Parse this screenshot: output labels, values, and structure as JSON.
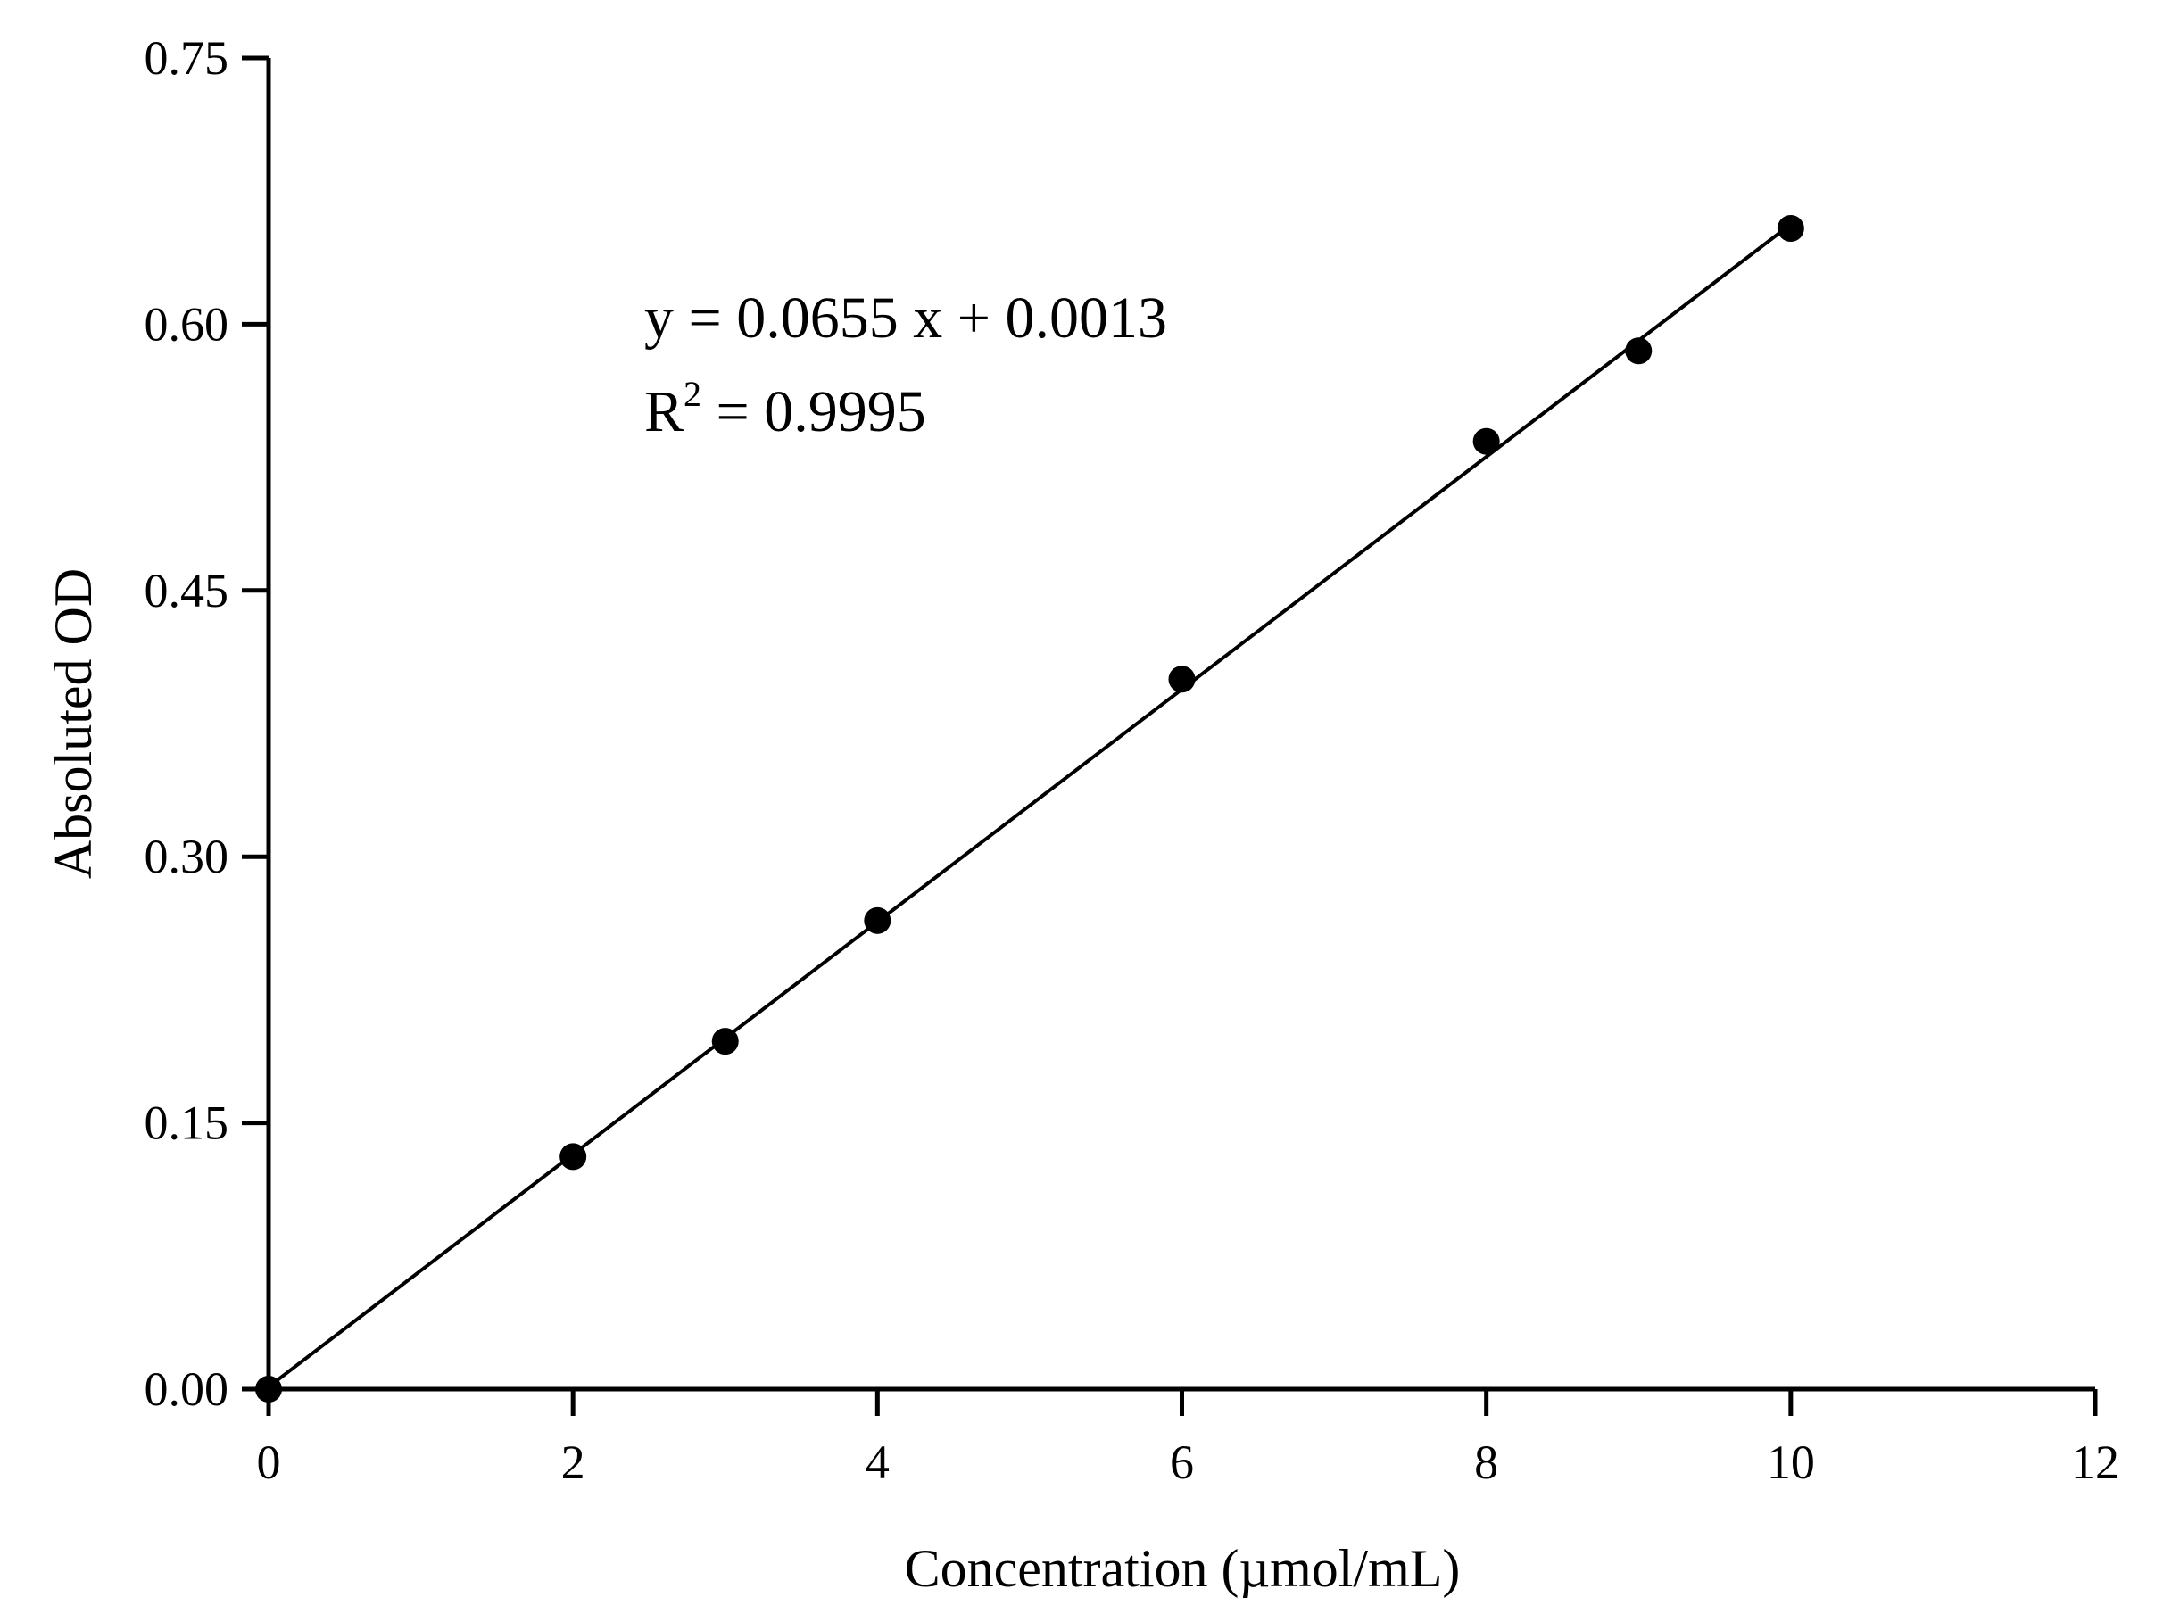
{
  "chart_data": {
    "type": "scatter",
    "title": "",
    "xlabel": "Concentration (µmol/mL)",
    "ylabel": "Absoluted OD",
    "xlim": [
      0,
      12
    ],
    "ylim": [
      0,
      0.75
    ],
    "xticks": [
      0,
      2,
      4,
      6,
      8,
      10,
      12
    ],
    "xtick_labels": [
      "0",
      "2",
      "4",
      "6",
      "8",
      "10",
      "12"
    ],
    "yticks": [
      0,
      0.15,
      0.3,
      0.45,
      0.6,
      0.75
    ],
    "ytick_labels": [
      "0.00",
      "0.15",
      "0.30",
      "0.45",
      "0.60",
      "0.75"
    ],
    "grid": false,
    "series": [
      {
        "x": [
          0,
          2,
          3,
          4,
          6,
          8,
          9,
          10
        ],
        "y": [
          0.0,
          0.131,
          0.196,
          0.264,
          0.4,
          0.534,
          0.585,
          0.654
        ],
        "marker_color": "#000000"
      }
    ],
    "fit": {
      "slope": 0.0655,
      "intercept": 0.0013,
      "x_range": [
        0,
        10
      ],
      "color": "#000000"
    },
    "annotations": {
      "equation": "y = 0.0655 x + 0.0013",
      "r2_label": "R",
      "r2_sup": "2",
      "r2_value": " = 0.9995"
    }
  }
}
